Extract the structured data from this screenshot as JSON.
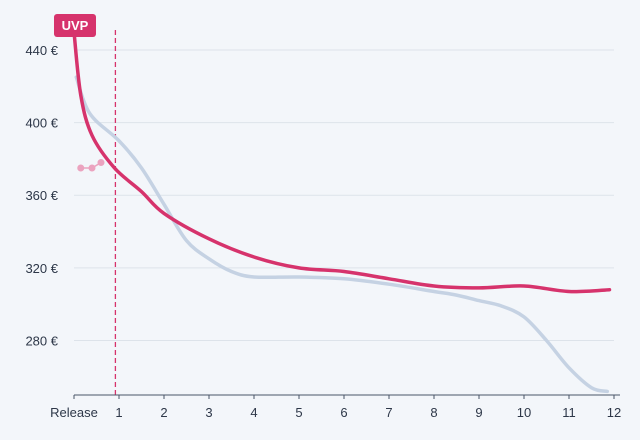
{
  "chart_data": {
    "type": "line",
    "x_ticks": [
      "Release",
      "1",
      "2",
      "3",
      "4",
      "5",
      "6",
      "7",
      "8",
      "9",
      "10",
      "11",
      "12"
    ],
    "xlim": [
      0,
      12
    ],
    "ylim": [
      250,
      462
    ],
    "y_ticks": [
      280,
      320,
      360,
      400,
      440
    ],
    "y_tick_labels": [
      "280 €",
      "320 €",
      "360 €",
      "400 €",
      "440 €"
    ],
    "grid": true,
    "vline_x": 0.92,
    "callout": {
      "label": "UVP",
      "x": 0,
      "y": 450
    },
    "colors": {
      "main": "#d6336c",
      "light": "#c5d2e3",
      "dots": "#eba3bf",
      "axis": "#4a5568"
    },
    "series": [
      {
        "color": "#c5d2e3",
        "points": [
          [
            0.05,
            425
          ],
          [
            0.35,
            405
          ],
          [
            1,
            390
          ],
          [
            1.5,
            375
          ],
          [
            2,
            355
          ],
          [
            2.5,
            335
          ],
          [
            3,
            325
          ],
          [
            3.5,
            318
          ],
          [
            4,
            315
          ],
          [
            5,
            315
          ],
          [
            6,
            314
          ],
          [
            7,
            311
          ],
          [
            8,
            307
          ],
          [
            8.5,
            305
          ],
          [
            9,
            302
          ],
          [
            9.5,
            299
          ],
          [
            10,
            293
          ],
          [
            10.5,
            280
          ],
          [
            11,
            265
          ],
          [
            11.5,
            254
          ],
          [
            11.85,
            252
          ]
        ]
      },
      {
        "color": "#d6336c",
        "points": [
          [
            0,
            450
          ],
          [
            0.15,
            415
          ],
          [
            0.4,
            393
          ],
          [
            0.9,
            375
          ],
          [
            1.5,
            362
          ],
          [
            2,
            350
          ],
          [
            3,
            336
          ],
          [
            4,
            326
          ],
          [
            5,
            320
          ],
          [
            6,
            318
          ],
          [
            7,
            314
          ],
          [
            8,
            310
          ],
          [
            9,
            309
          ],
          [
            10,
            310
          ],
          [
            11,
            307
          ],
          [
            11.9,
            308
          ]
        ]
      },
      {
        "color": "#eba3bf",
        "points": [
          [
            0.15,
            375
          ],
          [
            0.4,
            375
          ],
          [
            0.6,
            378
          ]
        ]
      }
    ]
  }
}
